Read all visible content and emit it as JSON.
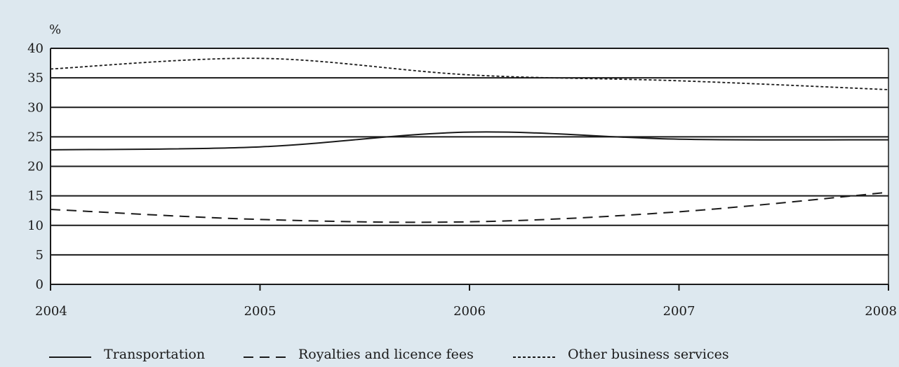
{
  "chart_data": {
    "type": "line",
    "title": "",
    "ylabel": "%",
    "xlabel": "",
    "categories": [
      "2004",
      "2005",
      "2006",
      "2007",
      "2008"
    ],
    "ylim": [
      0,
      40
    ],
    "yticks": [
      "0",
      "5",
      "10",
      "15",
      "20",
      "25",
      "30",
      "35",
      "40"
    ],
    "grid": "horizontal",
    "legend_position": "bottom",
    "series": [
      {
        "name": "Transportation",
        "style": "solid",
        "color": "#1a1a1a",
        "values": [
          22.8,
          23.3,
          25.8,
          24.6,
          24.5
        ]
      },
      {
        "name": "Royalties and licence fees",
        "style": "dashed",
        "color": "#1a1a1a",
        "values": [
          12.7,
          11.0,
          10.6,
          12.3,
          15.6
        ]
      },
      {
        "name": "Other business services",
        "style": "dotted",
        "color": "#1a1a1a",
        "values": [
          36.5,
          38.3,
          35.5,
          34.5,
          33.0
        ]
      }
    ]
  }
}
